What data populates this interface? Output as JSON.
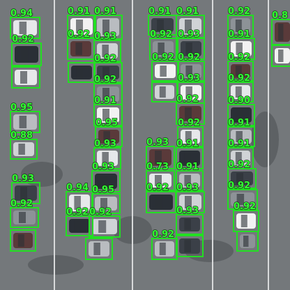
{
  "detections": [
    "0.94",
    "0.92",
    "0.95",
    "0.88",
    "0.93",
    "0.92",
    "0.91",
    "0.92",
    "0.94",
    "0.92",
    "0.91",
    "0.93",
    "0.92",
    "0.92",
    "0.91",
    "0.95",
    "0.93",
    "0.93",
    "0.95",
    "0.92",
    "0.91",
    "0.92",
    "0.92",
    "0.93",
    "0.73",
    "0.92",
    "0.92",
    "0.91",
    "0.93",
    "0.92",
    "0.93",
    "0.92",
    "0.92",
    "0.91",
    "0.91",
    "0.93",
    "0.93",
    "0.92",
    "0.91",
    "0.92",
    "0.92",
    "0.90",
    "0.91",
    "0.91",
    "0.92",
    "0.92",
    "0.92",
    "0.8"
  ]
}
